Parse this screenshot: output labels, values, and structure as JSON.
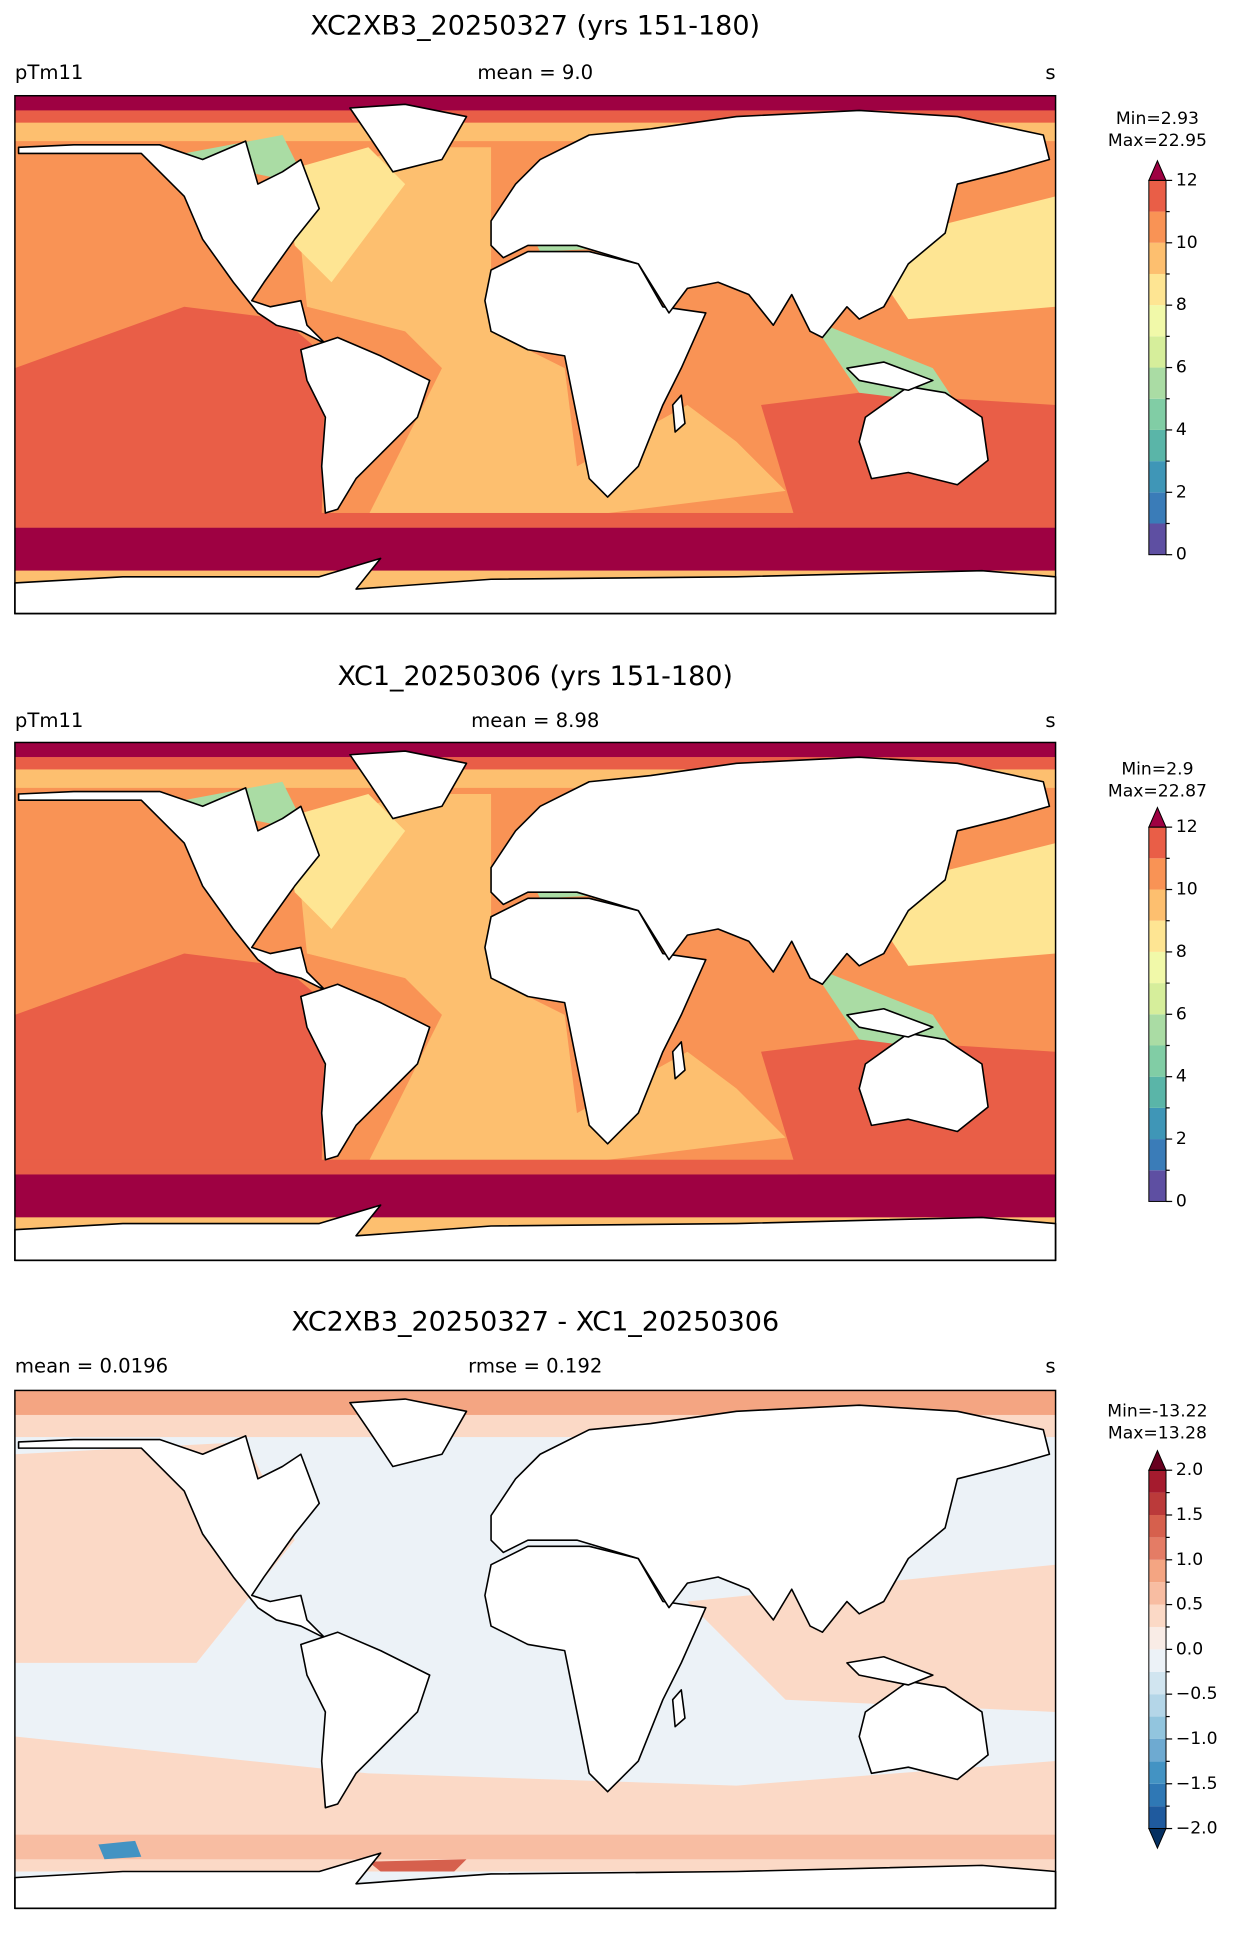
{
  "panels": [
    {
      "title": "XC2XB3_20250327 (yrs 151-180)",
      "left_label": "pTm11",
      "center_label": "mean = 9.0",
      "right_label": "s",
      "min_label": "Min=2.93",
      "max_label": "Max=22.95",
      "colorbar": {
        "lim": [
          0,
          12
        ],
        "ticks": [
          0,
          2,
          4,
          6,
          8,
          10,
          12
        ],
        "minor_ticks": [
          1,
          3,
          5,
          7,
          9,
          11
        ],
        "extend": "max",
        "colors": [
          "#5e4fa2",
          "#3a7cb8",
          "#3f96b7",
          "#5ab5a8",
          "#81cda5",
          "#aadca4",
          "#d6ee9b",
          "#f1f9a9",
          "#fee593",
          "#fdbf6f",
          "#f99355",
          "#e95e47"
        ],
        "extend_high_color": "#9e0142"
      }
    },
    {
      "title": "XC1_20250306 (yrs 151-180)",
      "left_label": "pTm11",
      "center_label": "mean = 8.98",
      "right_label": "s",
      "min_label": "Min=2.9",
      "max_label": "Max=22.87",
      "colorbar": {
        "lim": [
          0,
          12
        ],
        "ticks": [
          0,
          2,
          4,
          6,
          8,
          10,
          12
        ],
        "minor_ticks": [
          1,
          3,
          5,
          7,
          9,
          11
        ],
        "extend": "max",
        "colors": [
          "#5e4fa2",
          "#3a7cb8",
          "#3f96b7",
          "#5ab5a8",
          "#81cda5",
          "#aadca4",
          "#d6ee9b",
          "#f1f9a9",
          "#fee593",
          "#fdbf6f",
          "#f99355",
          "#e95e47"
        ],
        "extend_high_color": "#9e0142"
      }
    },
    {
      "title": "XC2XB3_20250327 - XC1_20250306",
      "left_label": "mean = 0.0196",
      "center_label": "rmse = 0.192",
      "right_label": "s",
      "min_label": "Min=-13.22",
      "max_label": "Max=13.28",
      "colorbar": {
        "lim": [
          -2,
          2
        ],
        "ticks": [
          {
            "value": -2,
            "label": "−2.0"
          },
          {
            "value": -1.5,
            "label": "−1.5"
          },
          {
            "value": -1,
            "label": "−1.0"
          },
          {
            "value": -0.5,
            "label": "−0.5"
          },
          {
            "value": 0,
            "label": "0.0"
          },
          {
            "value": 0.5,
            "label": "0.5"
          },
          {
            "value": 1,
            "label": "1.0"
          },
          {
            "value": 1.5,
            "label": "1.5"
          },
          {
            "value": 2,
            "label": "2.0"
          }
        ],
        "minor_ticks": [
          -1.75,
          -1.25,
          -0.75,
          -0.25,
          0.25,
          0.75,
          1.25,
          1.75
        ],
        "extend": "both",
        "colors": [
          "#1f5a9e",
          "#2f78b5",
          "#4393c3",
          "#6eaad1",
          "#92c5de",
          "#b4d6e8",
          "#d1e5f0",
          "#ecf2f7",
          "#f9ece6",
          "#fbd9c6",
          "#f8bda2",
          "#f4a582",
          "#e47c65",
          "#d6604d",
          "#bb3a3a",
          "#a51b2e"
        ],
        "extend_low_color": "#053061",
        "extend_high_color": "#67001f"
      }
    }
  ]
}
